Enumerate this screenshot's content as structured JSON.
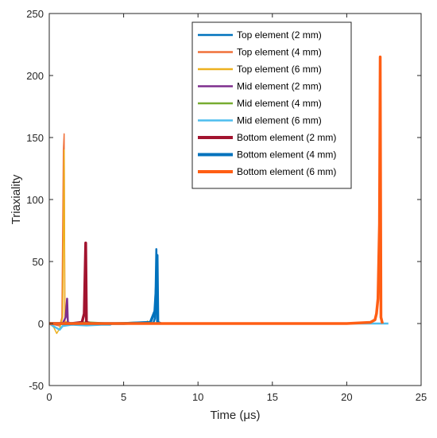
{
  "chart_data": {
    "type": "line",
    "xlabel": "Time (μs)",
    "ylabel": "Triaxiality",
    "xlim": [
      0,
      25
    ],
    "ylim": [
      -50,
      250
    ],
    "xticks": [
      "0",
      "5",
      "10",
      "15",
      "20",
      "25"
    ],
    "yticks": [
      "-50",
      "0",
      "50",
      "100",
      "150",
      "200",
      "250"
    ],
    "grid": false,
    "legend_position": "top-right",
    "series": [
      {
        "name": "Top element (2 mm)",
        "color": "#0072BD",
        "points": [
          [
            0,
            0
          ],
          [
            6.6,
            0
          ],
          [
            7.0,
            0.5
          ],
          [
            7.1,
            4
          ],
          [
            7.15,
            25
          ],
          [
            7.2,
            60
          ],
          [
            7.25,
            0
          ],
          [
            7.5,
            0
          ]
        ]
      },
      {
        "name": "Top element (4 mm)",
        "color": "#F0703A",
        "points": [
          [
            0,
            0
          ],
          [
            0.7,
            -2
          ],
          [
            0.85,
            5
          ],
          [
            0.95,
            140
          ],
          [
            1.0,
            153
          ],
          [
            1.05,
            2
          ],
          [
            1.3,
            0
          ],
          [
            2.5,
            0
          ]
        ]
      },
      {
        "name": "Top element (6 mm)",
        "color": "#EDB120",
        "points": [
          [
            0,
            0
          ],
          [
            0.3,
            -3
          ],
          [
            0.5,
            -8
          ],
          [
            0.7,
            -4
          ],
          [
            0.9,
            5
          ],
          [
            1.0,
            140
          ],
          [
            1.05,
            2
          ],
          [
            1.3,
            0
          ],
          [
            6.5,
            0
          ],
          [
            6.6,
            2
          ],
          [
            6.7,
            0
          ]
        ]
      },
      {
        "name": "Mid element (2 mm)",
        "color": "#7E2F8E",
        "points": [
          [
            0,
            0
          ],
          [
            0.9,
            0
          ],
          [
            1.1,
            5
          ],
          [
            1.2,
            20
          ],
          [
            1.25,
            1
          ],
          [
            1.5,
            0
          ],
          [
            3,
            0
          ]
        ]
      },
      {
        "name": "Mid element (4 mm)",
        "color": "#77AC30",
        "points": [
          [
            0,
            0
          ],
          [
            1.5,
            0
          ],
          [
            2.5,
            1
          ],
          [
            4,
            0
          ],
          [
            6.5,
            1
          ],
          [
            6.7,
            0
          ],
          [
            8,
            0
          ]
        ]
      },
      {
        "name": "Mid element (6 mm)",
        "color": "#4DBEEE",
        "points": [
          [
            0,
            0
          ],
          [
            0.4,
            -3
          ],
          [
            0.7,
            -5
          ],
          [
            0.9,
            -2
          ],
          [
            1.5,
            -1
          ],
          [
            2.5,
            -1.5
          ],
          [
            3.5,
            -1
          ],
          [
            4.1,
            -1
          ],
          [
            4.2,
            0
          ],
          [
            6,
            0
          ],
          [
            10,
            0
          ],
          [
            15,
            0
          ],
          [
            20,
            0
          ],
          [
            22.5,
            0
          ],
          [
            22.8,
            0
          ]
        ]
      },
      {
        "name": "Bottom element (2 mm)",
        "color": "#A2142F",
        "points": [
          [
            0,
            0
          ],
          [
            1.5,
            0
          ],
          [
            2.2,
            1
          ],
          [
            2.35,
            8
          ],
          [
            2.45,
            65
          ],
          [
            2.5,
            1
          ],
          [
            2.8,
            0
          ]
        ]
      },
      {
        "name": "Bottom element (4 mm)",
        "color": "#0072BD",
        "points": [
          [
            0,
            0
          ],
          [
            5,
            0
          ],
          [
            6.8,
            1
          ],
          [
            7.1,
            10
          ],
          [
            7.2,
            30
          ],
          [
            7.25,
            55
          ],
          [
            7.3,
            1
          ],
          [
            7.5,
            0
          ]
        ]
      },
      {
        "name": "Bottom element (6 mm)",
        "color": "#FF5E14",
        "points": [
          [
            0,
            0
          ],
          [
            5,
            0
          ],
          [
            10,
            0
          ],
          [
            15,
            0
          ],
          [
            20,
            0
          ],
          [
            21.6,
            1
          ],
          [
            21.9,
            3
          ],
          [
            22.0,
            8
          ],
          [
            22.1,
            20
          ],
          [
            22.2,
            80
          ],
          [
            22.25,
            215
          ],
          [
            22.3,
            5
          ],
          [
            22.4,
            0
          ]
        ]
      }
    ]
  }
}
